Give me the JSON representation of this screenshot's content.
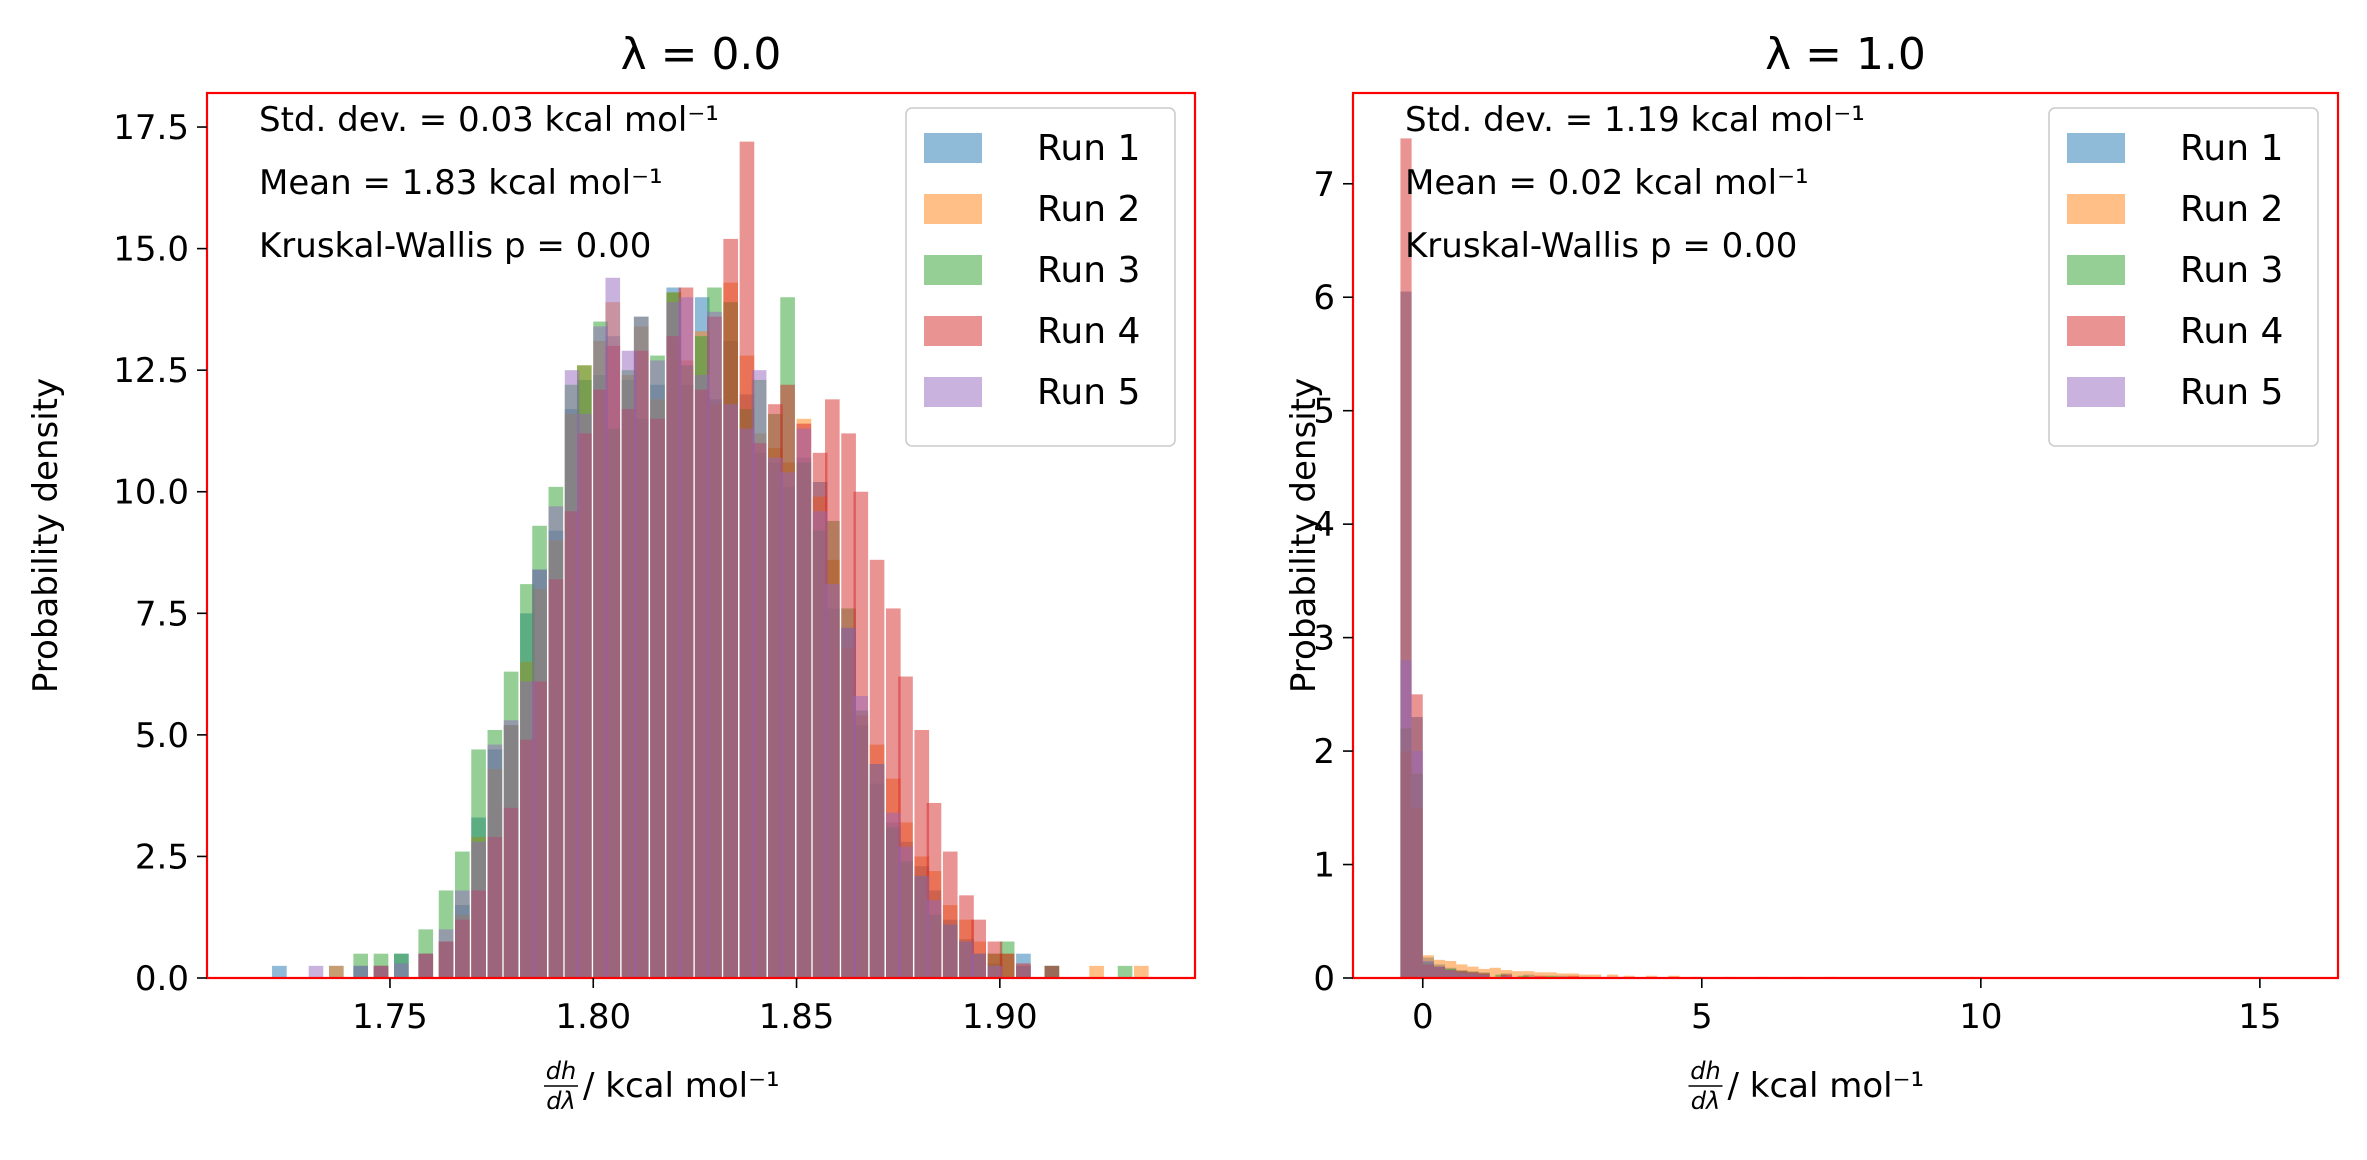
{
  "colors": {
    "run1": "#1f77b4",
    "run2": "#ff7f0e",
    "run3": "#2ca02c",
    "run4": "#d62728",
    "run5": "#9467bd",
    "frame": "#ff0000",
    "bar_alpha": 0.5
  },
  "chart_data": [
    {
      "type": "bar",
      "subtype": "histogram",
      "title": "λ = 0.0",
      "xlabel": "dh/dλ / kcal mol⁻¹",
      "xlabel_parts": {
        "num": "dh",
        "den": "dλ",
        "rest": " / kcal mol⁻¹"
      },
      "ylabel": "Probability density",
      "xlim": [
        1.705,
        1.948
      ],
      "ylim": [
        0,
        18.2
      ],
      "xticks": [
        1.75,
        1.8,
        1.85,
        1.9
      ],
      "xtick_labels": [
        "1.75",
        "1.80",
        "1.85",
        "1.90"
      ],
      "yticks": [
        0,
        2.5,
        5,
        7.5,
        10,
        12.5,
        15,
        17.5
      ],
      "ytick_labels": [
        "0.0",
        "2.5",
        "5.0",
        "7.5",
        "10.0",
        "12.5",
        "15.0",
        "17.5"
      ],
      "annotations": [
        "Std. dev. = 0.03 kcal mol⁻¹",
        "Mean = 1.83 kcal mol⁻¹",
        "Kruskal-Wallis p = 0.00"
      ],
      "legend_position": "upper right",
      "bin_width": 0.0036,
      "series": [
        {
          "name": "Run 1",
          "x": [
            1.721,
            1.735,
            1.741,
            1.746,
            1.751,
            1.757,
            1.762,
            1.766,
            1.77,
            1.774,
            1.778,
            1.782,
            1.785,
            1.789,
            1.793,
            1.796,
            1.8,
            1.803,
            1.807,
            1.81,
            1.814,
            1.818,
            1.821,
            1.825,
            1.828,
            1.832,
            1.836,
            1.839,
            1.843,
            1.846,
            1.85,
            1.854,
            1.857,
            1.861,
            1.864,
            1.868,
            1.872,
            1.875,
            1.879,
            1.882,
            1.886,
            1.89,
            1.893,
            1.897,
            1.904,
            1.911
          ],
          "y": [
            0.25,
            0.25,
            0.25,
            0.25,
            0.5,
            0.5,
            0.75,
            1.5,
            3.3,
            4.7,
            5.2,
            7.5,
            8.4,
            9.2,
            11.7,
            12.3,
            12.4,
            13.2,
            12.3,
            11.5,
            12.2,
            14.2,
            12.2,
            14.0,
            11.9,
            13.1,
            12.0,
            10.8,
            10.6,
            10.1,
            10.7,
            10.2,
            7.6,
            7.2,
            5.2,
            4.0,
            3.2,
            2.8,
            2.3,
            1.8,
            1.2,
            0.8,
            0.5,
            0.3,
            0.5,
            0.25
          ]
        },
        {
          "name": "Run 2",
          "x": [
            1.735,
            1.746,
            1.757,
            1.762,
            1.766,
            1.77,
            1.774,
            1.778,
            1.782,
            1.785,
            1.789,
            1.793,
            1.796,
            1.8,
            1.803,
            1.807,
            1.81,
            1.814,
            1.818,
            1.821,
            1.825,
            1.828,
            1.832,
            1.836,
            1.839,
            1.843,
            1.846,
            1.85,
            1.854,
            1.857,
            1.861,
            1.864,
            1.868,
            1.872,
            1.875,
            1.879,
            1.882,
            1.886,
            1.89,
            1.893,
            1.897,
            1.9,
            1.904,
            1.922,
            1.933
          ],
          "y": [
            0.25,
            0.25,
            0.5,
            0.75,
            1.3,
            2.9,
            4.3,
            5.2,
            6.5,
            8.0,
            9.0,
            11.6,
            12.6,
            13.1,
            13.9,
            12.4,
            13.4,
            11.9,
            14.1,
            12.7,
            13.3,
            11.8,
            14.3,
            12.8,
            11.2,
            10.9,
            10.6,
            11.5,
            9.9,
            8.6,
            6.8,
            5.4,
            4.8,
            4.1,
            3.2,
            2.5,
            2.2,
            1.5,
            1.2,
            0.75,
            0.5,
            0.5,
            0.25,
            0.25,
            0.25
          ]
        },
        {
          "name": "Run 3",
          "x": [
            1.741,
            1.746,
            1.751,
            1.757,
            1.762,
            1.766,
            1.77,
            1.774,
            1.778,
            1.782,
            1.785,
            1.789,
            1.793,
            1.796,
            1.8,
            1.803,
            1.807,
            1.81,
            1.814,
            1.818,
            1.821,
            1.825,
            1.828,
            1.832,
            1.836,
            1.839,
            1.843,
            1.846,
            1.85,
            1.854,
            1.857,
            1.861,
            1.864,
            1.868,
            1.872,
            1.875,
            1.879,
            1.882,
            1.886,
            1.89,
            1.893,
            1.897,
            1.9,
            1.904,
            1.911,
            1.929
          ],
          "y": [
            0.5,
            0.5,
            0.5,
            1.0,
            1.8,
            2.6,
            4.7,
            5.1,
            6.3,
            8.1,
            9.3,
            10.1,
            12.2,
            12.6,
            13.5,
            11.3,
            12.5,
            13.6,
            12.8,
            14.1,
            12.6,
            13.2,
            14.2,
            13.9,
            11.7,
            12.3,
            11.6,
            14.0,
            10.6,
            9.2,
            9.4,
            7.6,
            5.5,
            4.4,
            3.1,
            2.4,
            2.1,
            1.3,
            1.1,
            0.75,
            0.5,
            0.5,
            0.75,
            0.25,
            0.25,
            0.25
          ]
        },
        {
          "name": "Run 4",
          "x": [
            1.746,
            1.757,
            1.762,
            1.766,
            1.77,
            1.774,
            1.778,
            1.782,
            1.785,
            1.789,
            1.793,
            1.796,
            1.8,
            1.803,
            1.807,
            1.81,
            1.814,
            1.818,
            1.821,
            1.825,
            1.828,
            1.832,
            1.836,
            1.839,
            1.843,
            1.846,
            1.85,
            1.854,
            1.857,
            1.861,
            1.864,
            1.868,
            1.872,
            1.875,
            1.879,
            1.882,
            1.886,
            1.89,
            1.893,
            1.897,
            1.9,
            1.904,
            1.911
          ],
          "y": [
            0.25,
            0.5,
            0.75,
            1.2,
            1.8,
            2.9,
            3.5,
            4.9,
            6.1,
            8.2,
            9.6,
            11.2,
            12.1,
            13.0,
            11.7,
            12.9,
            11.5,
            13.2,
            14.2,
            12.1,
            13.6,
            15.2,
            17.2,
            11.0,
            11.8,
            12.2,
            11.4,
            10.8,
            11.9,
            11.2,
            10.0,
            8.6,
            7.6,
            6.2,
            5.1,
            3.6,
            2.6,
            1.7,
            1.2,
            0.75,
            0.5,
            0.3,
            0.25
          ]
        },
        {
          "name": "Run 5",
          "x": [
            1.73,
            1.741,
            1.746,
            1.751,
            1.757,
            1.762,
            1.766,
            1.77,
            1.774,
            1.778,
            1.782,
            1.785,
            1.789,
            1.793,
            1.796,
            1.8,
            1.803,
            1.807,
            1.81,
            1.814,
            1.818,
            1.821,
            1.825,
            1.828,
            1.832,
            1.836,
            1.839,
            1.843,
            1.846,
            1.85,
            1.854,
            1.857,
            1.861,
            1.864,
            1.868,
            1.872,
            1.875,
            1.879,
            1.882,
            1.886,
            1.89,
            1.893,
            1.897,
            1.904
          ],
          "y": [
            0.25,
            0.25,
            0.25,
            0.3,
            0.5,
            1.0,
            1.8,
            2.8,
            4.8,
            5.3,
            6.1,
            8.4,
            9.7,
            12.5,
            11.6,
            13.4,
            14.4,
            12.9,
            13.6,
            12.7,
            13.9,
            14.0,
            12.4,
            13.7,
            11.8,
            11.3,
            12.5,
            10.7,
            10.4,
            11.3,
            9.6,
            8.1,
            7.2,
            5.8,
            4.4,
            3.4,
            2.7,
            2.1,
            1.6,
            1.1,
            0.75,
            0.5,
            0.25,
            0.25
          ]
        }
      ]
    },
    {
      "type": "bar",
      "subtype": "histogram",
      "title": "λ = 1.0",
      "xlabel": "dh/dλ / kcal mol⁻¹",
      "xlabel_parts": {
        "num": "dh",
        "den": "dλ",
        "rest": " / kcal mol⁻¹"
      },
      "ylabel": "Probability density",
      "xlim": [
        -1.25,
        16.4
      ],
      "ylim": [
        0,
        7.8
      ],
      "xticks": [
        0,
        5,
        10,
        15
      ],
      "xtick_labels": [
        "0",
        "5",
        "10",
        "15"
      ],
      "yticks": [
        0,
        1,
        2,
        3,
        4,
        5,
        6,
        7
      ],
      "ytick_labels": [
        "0",
        "1",
        "2",
        "3",
        "4",
        "5",
        "6",
        "7"
      ],
      "annotations": [
        "Std. dev. = 1.19 kcal mol⁻¹",
        "Mean = 0.02 kcal mol⁻¹",
        "Kruskal-Wallis p = 0.00"
      ],
      "legend_position": "upper right",
      "bin_width": 0.2,
      "series": [
        {
          "name": "Run 1",
          "x": [
            -0.4,
            -0.2,
            0.0,
            0.2,
            0.4,
            0.6,
            0.8,
            1.0,
            1.4,
            1.8,
            2.4,
            3.2
          ],
          "y": [
            6.05,
            2.3,
            0.18,
            0.12,
            0.09,
            0.07,
            0.06,
            0.05,
            0.04,
            0.03,
            0.02,
            0.01
          ]
        },
        {
          "name": "Run 2",
          "x": [
            -0.4,
            -0.2,
            0.0,
            0.2,
            0.4,
            0.6,
            0.8,
            1.0,
            1.2,
            1.4,
            1.6,
            1.8,
            2.0,
            2.2,
            2.4,
            2.6,
            2.8,
            3.0,
            3.3,
            3.6,
            4.0,
            4.4,
            4.8,
            5.4,
            6.0,
            6.6,
            7.2
          ],
          "y": [
            2.0,
            1.5,
            0.2,
            0.16,
            0.15,
            0.12,
            0.1,
            0.08,
            0.09,
            0.07,
            0.06,
            0.06,
            0.05,
            0.05,
            0.04,
            0.04,
            0.03,
            0.03,
            0.03,
            0.02,
            0.02,
            0.02,
            0.01,
            0.01,
            0.01,
            0.01,
            0.01
          ]
        },
        {
          "name": "Run 3",
          "x": [
            -0.4,
            -0.2,
            0.0,
            0.2,
            0.4,
            0.6,
            0.8,
            1.0,
            1.3,
            1.7,
            2.2,
            2.8
          ],
          "y": [
            2.2,
            1.8,
            0.14,
            0.1,
            0.08,
            0.06,
            0.05,
            0.04,
            0.03,
            0.02,
            0.02,
            0.01
          ]
        },
        {
          "name": "Run 4",
          "x": [
            -0.4,
            -0.2,
            0.0,
            0.2,
            0.4,
            0.6,
            0.8,
            1.0,
            1.4,
            2.0,
            2.6,
            3.4,
            4.4
          ],
          "y": [
            7.4,
            2.5,
            0.12,
            0.1,
            0.07,
            0.06,
            0.05,
            0.04,
            0.03,
            0.02,
            0.02,
            0.01,
            0.01
          ]
        },
        {
          "name": "Run 5",
          "x": [
            -0.4,
            -0.2,
            0.0,
            0.2,
            0.4,
            0.6,
            0.8,
            1.0,
            1.4,
            2.0
          ],
          "y": [
            2.8,
            2.0,
            0.15,
            0.1,
            0.07,
            0.05,
            0.04,
            0.03,
            0.02,
            0.01
          ]
        }
      ]
    }
  ]
}
